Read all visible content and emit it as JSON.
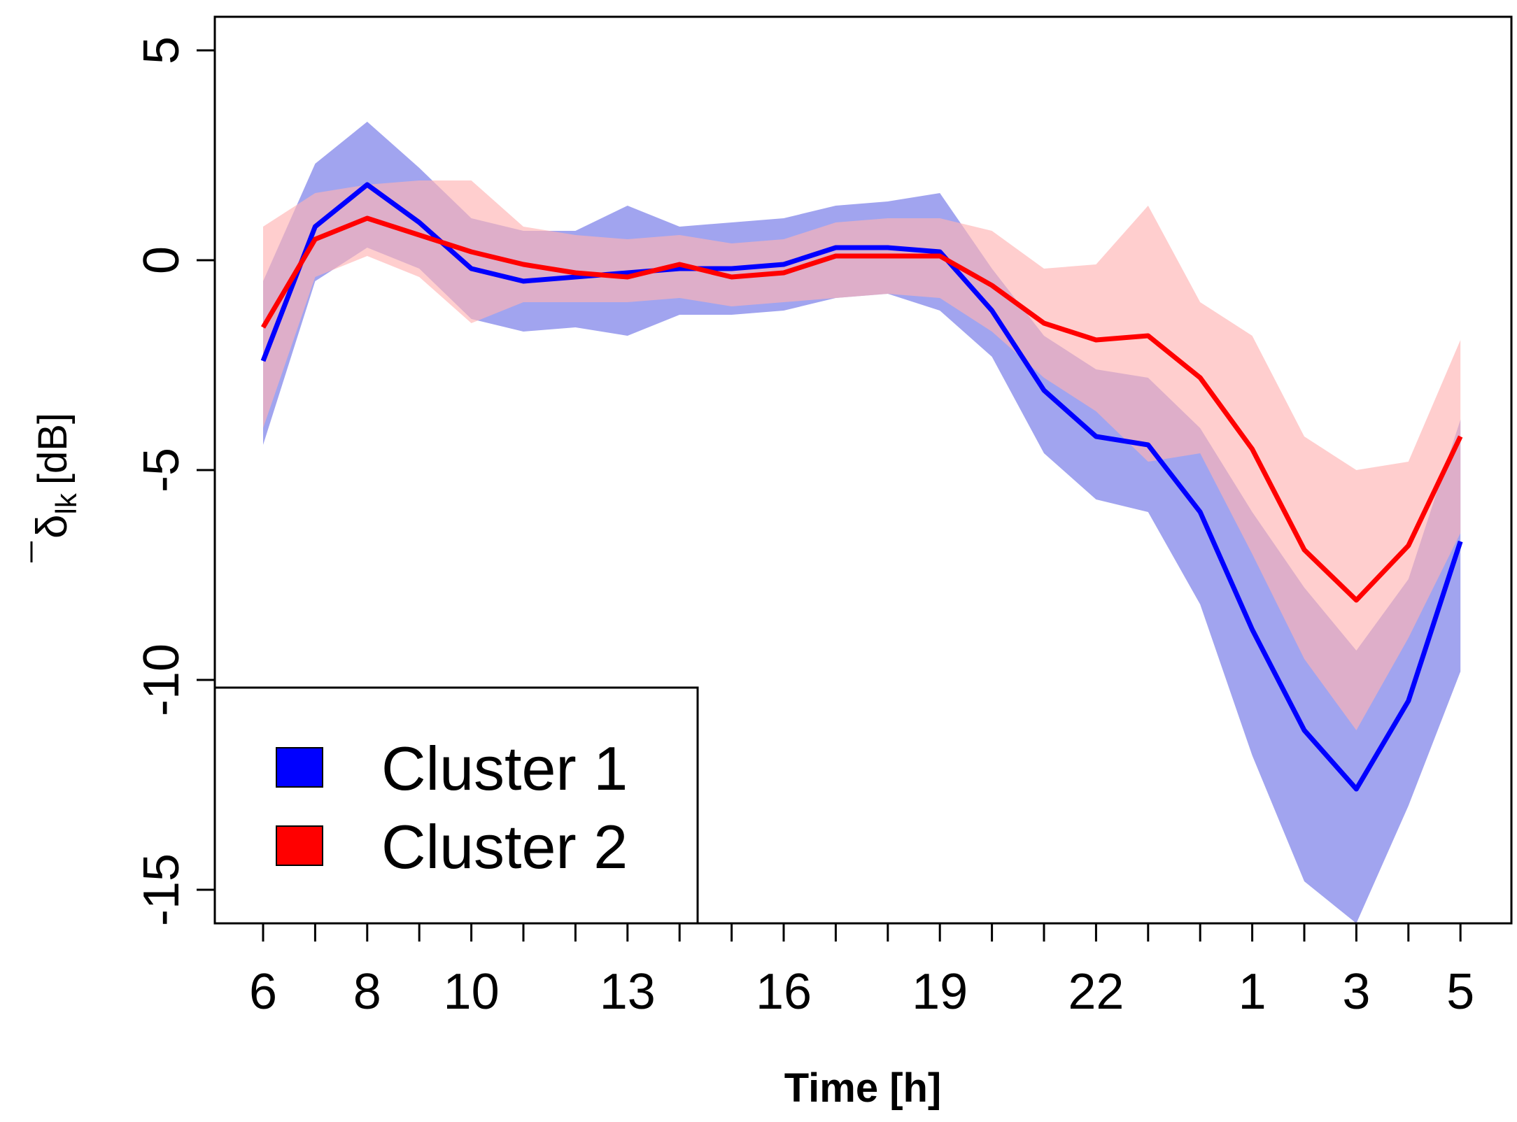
{
  "chart_data": {
    "type": "area",
    "title": "",
    "xlabel": "Time [h]",
    "ylabel": {
      "symbol": "δ",
      "subscript": "lk",
      "unit": "[dB]"
    },
    "ylim": [
      -15.8,
      5.8
    ],
    "yticks": [
      5,
      0,
      -5,
      -10,
      -15
    ],
    "ytick_labels": [
      "5",
      "0",
      "-5",
      "-10",
      "-15"
    ],
    "x_hours": [
      6,
      7,
      8,
      9,
      10,
      11,
      12,
      13,
      14,
      15,
      16,
      17,
      18,
      19,
      20,
      21,
      22,
      23,
      0,
      1,
      2,
      3,
      4,
      5
    ],
    "xticks_labeled": [
      {
        "index": 0,
        "label": "6"
      },
      {
        "index": 2,
        "label": "8"
      },
      {
        "index": 4,
        "label": "10"
      },
      {
        "index": 7,
        "label": "13"
      },
      {
        "index": 10,
        "label": "16"
      },
      {
        "index": 13,
        "label": "19"
      },
      {
        "index": 16,
        "label": "22"
      },
      {
        "index": 19,
        "label": "1"
      },
      {
        "index": 21,
        "label": "3"
      },
      {
        "index": 23,
        "label": "5"
      }
    ],
    "grid": false,
    "legend_position": "bottom-left",
    "series": [
      {
        "name": "Cluster 1",
        "color": "#0000ff",
        "band_color": "#6e73e6",
        "mean": [
          -2.4,
          0.8,
          1.8,
          0.9,
          -0.2,
          -0.5,
          -0.4,
          -0.3,
          -0.2,
          -0.2,
          -0.1,
          0.3,
          0.3,
          0.2,
          -1.2,
          -3.1,
          -4.2,
          -4.4,
          -6.0,
          -8.8,
          -11.2,
          -12.6,
          -10.5,
          -6.7
        ],
        "lower": [
          -4.4,
          -0.5,
          0.3,
          -0.2,
          -1.4,
          -1.7,
          -1.6,
          -1.8,
          -1.3,
          -1.3,
          -1.2,
          -0.9,
          -0.8,
          -1.2,
          -2.3,
          -4.6,
          -5.7,
          -6.0,
          -8.2,
          -11.8,
          -14.8,
          -15.8,
          -13.0,
          -9.8
        ],
        "upper": [
          -0.5,
          2.3,
          3.3,
          2.2,
          1.0,
          0.7,
          0.7,
          1.3,
          0.8,
          0.9,
          1.0,
          1.3,
          1.4,
          1.6,
          -0.2,
          -1.8,
          -2.6,
          -2.8,
          -4.0,
          -6.0,
          -7.8,
          -9.3,
          -7.6,
          -3.8
        ]
      },
      {
        "name": "Cluster 2",
        "color": "#ff0000",
        "band_color": "#ffb4b4",
        "mean": [
          -1.6,
          0.5,
          1.0,
          0.6,
          0.2,
          -0.1,
          -0.3,
          -0.4,
          -0.1,
          -0.4,
          -0.3,
          0.1,
          0.1,
          0.1,
          -0.6,
          -1.5,
          -1.9,
          -1.8,
          -2.8,
          -4.5,
          -6.9,
          -8.1,
          -6.8,
          -4.2
        ],
        "lower": [
          -4.0,
          -0.4,
          0.1,
          -0.4,
          -1.5,
          -1.0,
          -1.0,
          -1.0,
          -0.9,
          -1.1,
          -1.0,
          -0.9,
          -0.8,
          -0.9,
          -1.7,
          -2.8,
          -3.6,
          -4.8,
          -4.6,
          -7.0,
          -9.5,
          -11.2,
          -9.0,
          -6.5
        ],
        "upper": [
          0.8,
          1.6,
          1.8,
          1.9,
          1.9,
          0.8,
          0.6,
          0.5,
          0.6,
          0.4,
          0.5,
          0.9,
          1.0,
          1.0,
          0.7,
          -0.2,
          -0.1,
          1.3,
          -1.0,
          -1.8,
          -4.2,
          -5.0,
          -4.8,
          -1.9
        ]
      }
    ]
  }
}
